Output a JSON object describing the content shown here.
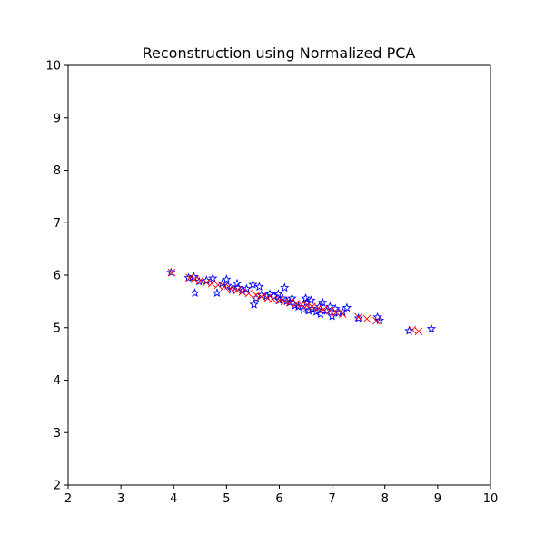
{
  "chart_data": {
    "type": "scatter",
    "title": "Reconstruction using Normalized PCA",
    "xlabel": "",
    "ylabel": "",
    "xlim": [
      2,
      10
    ],
    "ylim": [
      2,
      10
    ],
    "xticks": [
      2,
      3,
      4,
      5,
      6,
      7,
      8,
      9,
      10
    ],
    "yticks": [
      2,
      3,
      4,
      5,
      6,
      7,
      8,
      9,
      10
    ],
    "grid": false,
    "series": [
      {
        "marker": "star",
        "color": "#0000ff",
        "points": [
          [
            3.95,
            6.05
          ],
          [
            4.28,
            5.95
          ],
          [
            4.38,
            5.97
          ],
          [
            4.4,
            5.66
          ],
          [
            4.48,
            5.88
          ],
          [
            4.62,
            5.9
          ],
          [
            4.74,
            5.94
          ],
          [
            4.82,
            5.66
          ],
          [
            4.92,
            5.84
          ],
          [
            5.0,
            5.92
          ],
          [
            5.02,
            5.8
          ],
          [
            5.1,
            5.72
          ],
          [
            5.2,
            5.84
          ],
          [
            5.22,
            5.76
          ],
          [
            5.3,
            5.7
          ],
          [
            5.38,
            5.74
          ],
          [
            5.5,
            5.82
          ],
          [
            5.52,
            5.44
          ],
          [
            5.56,
            5.56
          ],
          [
            5.62,
            5.78
          ],
          [
            5.66,
            5.62
          ],
          [
            5.76,
            5.6
          ],
          [
            5.82,
            5.64
          ],
          [
            5.9,
            5.6
          ],
          [
            5.98,
            5.64
          ],
          [
            6.0,
            5.52
          ],
          [
            6.06,
            5.56
          ],
          [
            6.1,
            5.76
          ],
          [
            6.14,
            5.5
          ],
          [
            6.2,
            5.48
          ],
          [
            6.24,
            5.56
          ],
          [
            6.3,
            5.42
          ],
          [
            6.36,
            5.4
          ],
          [
            6.46,
            5.34
          ],
          [
            6.5,
            5.56
          ],
          [
            6.52,
            5.48
          ],
          [
            6.56,
            5.32
          ],
          [
            6.6,
            5.52
          ],
          [
            6.62,
            5.36
          ],
          [
            6.7,
            5.3
          ],
          [
            6.76,
            5.4
          ],
          [
            6.78,
            5.26
          ],
          [
            6.82,
            5.48
          ],
          [
            6.9,
            5.32
          ],
          [
            6.96,
            5.4
          ],
          [
            7.0,
            5.22
          ],
          [
            7.06,
            5.36
          ],
          [
            7.12,
            5.28
          ],
          [
            7.2,
            5.3
          ],
          [
            7.28,
            5.38
          ],
          [
            7.5,
            5.18
          ],
          [
            7.86,
            5.2
          ],
          [
            7.9,
            5.14
          ],
          [
            8.46,
            4.94
          ],
          [
            8.88,
            4.98
          ]
        ]
      },
      {
        "marker": "x",
        "color": "#ff0000",
        "points": [
          [
            3.96,
            6.05
          ],
          [
            4.3,
            5.95
          ],
          [
            4.4,
            5.92
          ],
          [
            4.5,
            5.9
          ],
          [
            4.62,
            5.86
          ],
          [
            4.72,
            5.84
          ],
          [
            4.84,
            5.81
          ],
          [
            4.96,
            5.78
          ],
          [
            5.08,
            5.74
          ],
          [
            5.2,
            5.71
          ],
          [
            5.3,
            5.68
          ],
          [
            5.42,
            5.65
          ],
          [
            5.56,
            5.62
          ],
          [
            5.66,
            5.59
          ],
          [
            5.78,
            5.56
          ],
          [
            5.88,
            5.54
          ],
          [
            6.0,
            5.52
          ],
          [
            6.1,
            5.5
          ],
          [
            6.2,
            5.48
          ],
          [
            6.32,
            5.46
          ],
          [
            6.42,
            5.44
          ],
          [
            6.52,
            5.42
          ],
          [
            6.62,
            5.4
          ],
          [
            6.74,
            5.37
          ],
          [
            6.84,
            5.35
          ],
          [
            6.96,
            5.32
          ],
          [
            7.08,
            5.29
          ],
          [
            7.2,
            5.26
          ],
          [
            7.5,
            5.2
          ],
          [
            7.66,
            5.17
          ],
          [
            7.84,
            5.13
          ],
          [
            8.52,
            4.96
          ],
          [
            8.64,
            4.93
          ]
        ]
      }
    ]
  }
}
